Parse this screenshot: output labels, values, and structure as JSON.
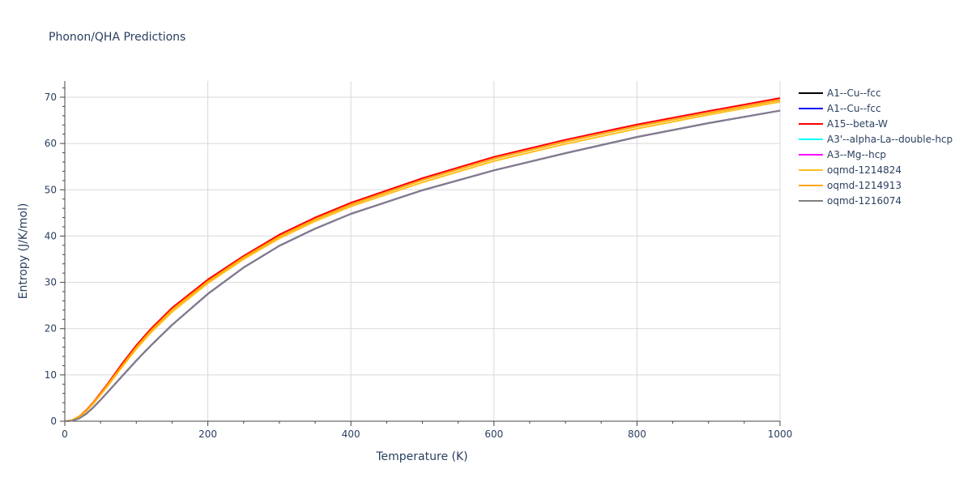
{
  "chart_data": {
    "type": "line",
    "title": "Phonon/QHA Predictions",
    "xlabel": "Temperature (K)",
    "ylabel": "Entropy (J/K/mol)",
    "xlim": [
      0,
      1000
    ],
    "ylim": [
      0,
      73.5
    ],
    "xticks": [
      0,
      200,
      400,
      600,
      800,
      1000
    ],
    "yticks": [
      0,
      10,
      20,
      30,
      40,
      50,
      60,
      70
    ],
    "grid": true,
    "legend_position": "right",
    "x": [
      0,
      10,
      20,
      30,
      40,
      50,
      60,
      80,
      100,
      120,
      150,
      200,
      250,
      300,
      350,
      400,
      500,
      600,
      700,
      800,
      900,
      1000
    ],
    "series": [
      {
        "name": "A1--Cu--fcc",
        "color": "#000000",
        "values": [
          0,
          0.1,
          0.6,
          1.6,
          3.0,
          4.6,
          6.3,
          9.7,
          13.1,
          16.3,
          20.8,
          27.5,
          33.2,
          37.9,
          41.6,
          44.8,
          49.9,
          54.2,
          57.9,
          61.4,
          64.4,
          67.1
        ]
      },
      {
        "name": "A1--Cu--fcc",
        "color": "#0000ff",
        "values": [
          0,
          0.1,
          0.6,
          1.6,
          3.0,
          4.6,
          6.3,
          9.7,
          13.1,
          16.3,
          20.8,
          27.5,
          33.2,
          37.9,
          41.6,
          44.8,
          49.9,
          54.2,
          57.9,
          61.4,
          64.4,
          67.1
        ]
      },
      {
        "name": "A15--beta-W",
        "color": "#ff0000",
        "values": [
          0,
          0.2,
          1.0,
          2.4,
          4.1,
          6.1,
          8.1,
          12.4,
          16.4,
          19.9,
          24.5,
          30.6,
          35.7,
          40.3,
          44.0,
          47.2,
          52.5,
          57.1,
          60.8,
          64.1,
          67.0,
          69.8
        ]
      },
      {
        "name": "A3'--alpha-La--double-hcp",
        "color": "#00ffff",
        "values": [
          0,
          0.1,
          0.6,
          1.6,
          3.0,
          4.6,
          6.3,
          9.7,
          13.1,
          16.3,
          20.8,
          27.5,
          33.2,
          37.9,
          41.6,
          44.8,
          49.9,
          54.2,
          57.9,
          61.4,
          64.4,
          67.1
        ]
      },
      {
        "name": "A3--Mg--hcp",
        "color": "#ff00ff",
        "values": [
          0,
          0.1,
          0.6,
          1.6,
          3.0,
          4.6,
          6.3,
          9.7,
          13.1,
          16.3,
          20.8,
          27.5,
          33.2,
          37.9,
          41.6,
          44.8,
          49.9,
          54.2,
          57.9,
          61.4,
          64.4,
          67.1
        ]
      },
      {
        "name": "oqmd-1214824",
        "color": "#ffbf1f",
        "values": [
          0,
          0.2,
          0.9,
          2.2,
          3.8,
          5.7,
          7.6,
          11.7,
          15.6,
          19.1,
          23.6,
          29.8,
          35.0,
          39.5,
          43.2,
          46.4,
          51.6,
          56.2,
          59.9,
          63.2,
          66.2,
          69.0
        ]
      },
      {
        "name": "oqmd-1214913",
        "color": "#ffa500",
        "values": [
          0,
          0.2,
          1.0,
          2.3,
          4.0,
          5.9,
          7.9,
          12.0,
          16.0,
          19.5,
          24.1,
          30.2,
          35.4,
          39.9,
          43.6,
          46.8,
          52.1,
          56.7,
          60.4,
          63.7,
          66.6,
          69.4
        ]
      },
      {
        "name": "oqmd-1216074",
        "color": "#808080",
        "values": [
          0,
          0.1,
          0.6,
          1.6,
          3.0,
          4.6,
          6.3,
          9.7,
          13.1,
          16.3,
          20.8,
          27.5,
          33.2,
          37.9,
          41.6,
          44.8,
          49.9,
          54.2,
          57.9,
          61.4,
          64.4,
          67.1
        ]
      }
    ]
  }
}
